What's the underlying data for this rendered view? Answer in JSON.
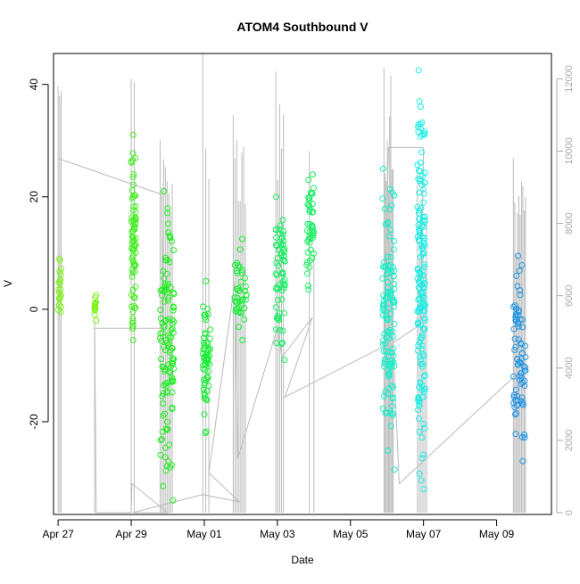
{
  "chart_data": {
    "type": "scatter",
    "title": "ATOM4 Southbound V",
    "xlabel": "Date",
    "ylabel": "V",
    "y2label": "",
    "xlim": [
      "2016-04-26T21:00",
      "2016-05-10T12:00"
    ],
    "ylim": [
      -36.5,
      45.5
    ],
    "y2lim": [
      -50,
      12700
    ],
    "x_ticks": [
      {
        "date": "2016-04-27",
        "label": "Apr 27"
      },
      {
        "date": "2016-04-29",
        "label": "Apr 29"
      },
      {
        "date": "2016-05-01",
        "label": "May 01"
      },
      {
        "date": "2016-05-03",
        "label": "May 03"
      },
      {
        "date": "2016-05-05",
        "label": "May 05"
      },
      {
        "date": "2016-05-07",
        "label": "May 07"
      },
      {
        "date": "2016-05-09",
        "label": "May 09"
      }
    ],
    "y_ticks": [
      -20,
      0,
      20,
      40
    ],
    "y2_ticks": [
      0,
      2000,
      4000,
      6000,
      8000,
      10000,
      12000
    ],
    "grid": false,
    "colors": {
      "axis": "#000000",
      "secondary_axis": "#aaaaaa",
      "secondary_series": "#bbbbbb"
    },
    "scatter_groups": [
      {
        "start": "2016-04-27T00:00",
        "end": "2016-04-27T02:00",
        "color": "#7cf21a",
        "ymin": -0.5,
        "ymax": 9
      },
      {
        "start": "2016-04-28T00:00",
        "end": "2016-04-28T01:00",
        "color": "#7cf21a",
        "ymin": -2,
        "ymax": 2.5
      },
      {
        "start": "2016-04-29T00:00",
        "end": "2016-04-29T03:00",
        "color": "#44ee22",
        "ymin": -5.5,
        "ymax": 31
      },
      {
        "start": "2016-04-29T19:00",
        "end": "2016-04-30T04:00",
        "color": "#22ee22",
        "ymin": -34,
        "ymax": 21
      },
      {
        "start": "2016-04-30T23:00",
        "end": "2016-05-01T04:00",
        "color": "#17ee35",
        "ymin": -22,
        "ymax": 5
      },
      {
        "start": "2016-05-01T19:00",
        "end": "2016-05-02T04:00",
        "color": "#17ee35",
        "ymin": -5.5,
        "ymax": 12.5
      },
      {
        "start": "2016-05-02T23:00",
        "end": "2016-05-03T05:00",
        "color": "#14ee60",
        "ymin": -9,
        "ymax": 20
      },
      {
        "start": "2016-05-03T19:00",
        "end": "2016-05-04T00:00",
        "color": "#14ee60",
        "ymin": 3.5,
        "ymax": 24
      },
      {
        "start": "2016-05-05T21:00",
        "end": "2016-05-06T05:00",
        "color": "#14eec8",
        "ymin": -28.5,
        "ymax": 25
      },
      {
        "start": "2016-05-06T20:00",
        "end": "2016-05-07T01:00",
        "color": "#1beee4",
        "ymin": -32,
        "ymax": 42.5
      },
      {
        "start": "2016-05-09T11:00",
        "end": "2016-05-09T19:00",
        "color": "#2396e4",
        "ymin": -27,
        "ymax": 9.5
      }
    ],
    "secondary_spikes": [
      {
        "start": "2016-04-27T00:00",
        "end": "2016-04-27T02:00",
        "count": 3,
        "top": 11800
      },
      {
        "start": "2016-04-28T00:00",
        "end": "2016-04-28T00:30",
        "count": 1,
        "top": 5300
      },
      {
        "start": "2016-04-29T00:00",
        "end": "2016-04-29T02:00",
        "count": 2,
        "top": 12000
      },
      {
        "start": "2016-04-29T19:00",
        "end": "2016-04-30T03:00",
        "count": 8,
        "top": 10300
      },
      {
        "start": "2016-04-30T23:00",
        "end": "2016-05-01T03:00",
        "count": 3,
        "top": 12700
      },
      {
        "start": "2016-05-01T19:00",
        "end": "2016-05-02T03:00",
        "count": 8,
        "top": 11000
      },
      {
        "start": "2016-05-02T23:00",
        "end": "2016-05-03T04:00",
        "count": 5,
        "top": 12200
      },
      {
        "start": "2016-05-03T21:00",
        "end": "2016-05-04T00:00",
        "count": 2,
        "top": 10000
      },
      {
        "start": "2016-05-05T22:00",
        "end": "2016-05-06T04:00",
        "count": 9,
        "top": 12300
      },
      {
        "start": "2016-05-06T20:00",
        "end": "2016-05-07T02:00",
        "count": 6,
        "top": 9500
      },
      {
        "start": "2016-05-09T11:00",
        "end": "2016-05-09T19:00",
        "count": 10,
        "top": 9800
      }
    ],
    "secondary_path": [
      {
        "date": "2016-04-27T00:00",
        "value": 9800
      },
      {
        "date": "2016-04-29T20:00",
        "value": 8800
      },
      {
        "date": "2016-04-29T21:00",
        "value": 5100
      },
      {
        "date": "2016-04-28T00:00",
        "value": 5100
      },
      {
        "date": "2016-04-28T01:00",
        "value": 0
      },
      {
        "date": "2016-04-29T00:00",
        "value": 0
      },
      {
        "date": "2016-04-29T00:30",
        "value": 800
      },
      {
        "date": "2016-04-30T00:00",
        "value": 0
      },
      {
        "date": "2016-04-29T01:00",
        "value": 0
      },
      {
        "date": "2016-04-30T23:00",
        "value": 500
      },
      {
        "date": "2016-05-01T23:00",
        "value": 300
      },
      {
        "date": "2016-05-01T03:00",
        "value": 1100
      },
      {
        "date": "2016-05-01T20:00",
        "value": 6400
      },
      {
        "date": "2016-05-01T22:00",
        "value": 1500
      },
      {
        "date": "2016-05-03T00:00",
        "value": 5100
      },
      {
        "date": "2016-05-03T03:00",
        "value": 4300
      },
      {
        "date": "2016-05-03T23:00",
        "value": 5400
      },
      {
        "date": "2016-05-03T05:00",
        "value": 3200
      },
      {
        "date": "2016-05-05T22:00",
        "value": 4600
      },
      {
        "date": "2016-05-06T01:00",
        "value": 10100
      },
      {
        "date": "2016-05-07T00:00",
        "value": 10100
      },
      {
        "date": "2016-05-06T22:00",
        "value": 5200
      },
      {
        "date": "2016-05-06T04:00",
        "value": 4700
      },
      {
        "date": "2016-05-06T08:00",
        "value": 800
      },
      {
        "date": "2016-05-09T15:00",
        "value": 3900
      }
    ]
  }
}
